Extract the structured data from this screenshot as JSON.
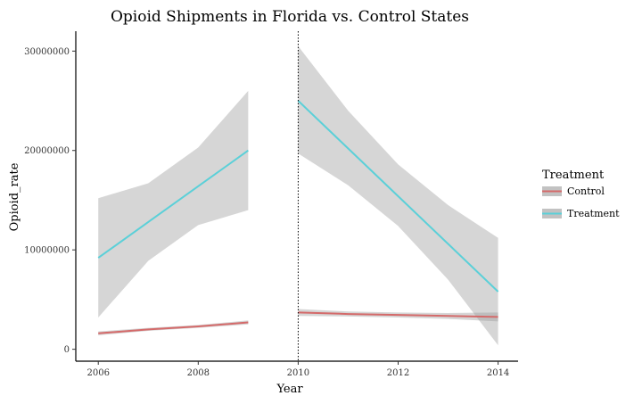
{
  "chart_data": {
    "type": "line",
    "title": "Opioid Shipments in  Florida vs. Control States",
    "xlabel": "Year",
    "ylabel": "Opioid_rate",
    "xlim": [
      2005.55,
      2014.4
    ],
    "ylim": [
      -1200000,
      32000000
    ],
    "x_ticks": [
      2006,
      2008,
      2010,
      2012,
      2014
    ],
    "y_ticks": [
      0,
      10000000,
      20000000,
      30000000
    ],
    "x_tick_labels": [
      "2006",
      "2008",
      "2010",
      "2012",
      "2014"
    ],
    "y_tick_labels": [
      "0",
      "10000000",
      "20000000",
      "30000000"
    ],
    "grid": false,
    "legend_position": "right",
    "vline": {
      "x": 2010,
      "style": "dotted"
    },
    "legend": {
      "title": "Treatment",
      "items": [
        {
          "label": "Control",
          "color": "#d46a6a"
        },
        {
          "label": "Treatment",
          "color": "#5bd0d8"
        }
      ]
    },
    "series": [
      {
        "name": "Control",
        "color": "#d46a6a",
        "segment": "pre",
        "x": [
          2006,
          2007,
          2008,
          2009
        ],
        "y": [
          1600000,
          2000000,
          2300000,
          2700000
        ],
        "lower": [
          1400000,
          1850000,
          2150000,
          2500000
        ],
        "upper": [
          1800000,
          2150000,
          2450000,
          2900000
        ]
      },
      {
        "name": "Control",
        "color": "#d46a6a",
        "segment": "post",
        "x": [
          2010,
          2011,
          2012,
          2013,
          2014
        ],
        "y": [
          3700000,
          3550000,
          3450000,
          3350000,
          3250000
        ],
        "lower": [
          3350000,
          3300000,
          3200000,
          3050000,
          2800000
        ],
        "upper": [
          4050000,
          3800000,
          3700000,
          3650000,
          3700000
        ]
      },
      {
        "name": "Treatment",
        "color": "#5bd0d8",
        "segment": "pre",
        "x": [
          2006,
          2007,
          2008,
          2009
        ],
        "y": [
          9200000,
          12800000,
          16400000,
          20000000
        ],
        "lower": [
          3200000,
          8900000,
          12500000,
          14000000
        ],
        "upper": [
          15200000,
          16700000,
          20300000,
          26000000
        ]
      },
      {
        "name": "Treatment",
        "color": "#5bd0d8",
        "segment": "post",
        "x": [
          2010,
          2011,
          2012,
          2013,
          2014
        ],
        "y": [
          25000000,
          20200000,
          15400000,
          10600000,
          5800000
        ],
        "lower": [
          19700000,
          16500000,
          12400000,
          7000000,
          400000
        ],
        "upper": [
          30500000,
          24000000,
          18600000,
          14500000,
          11200000
        ]
      }
    ]
  }
}
